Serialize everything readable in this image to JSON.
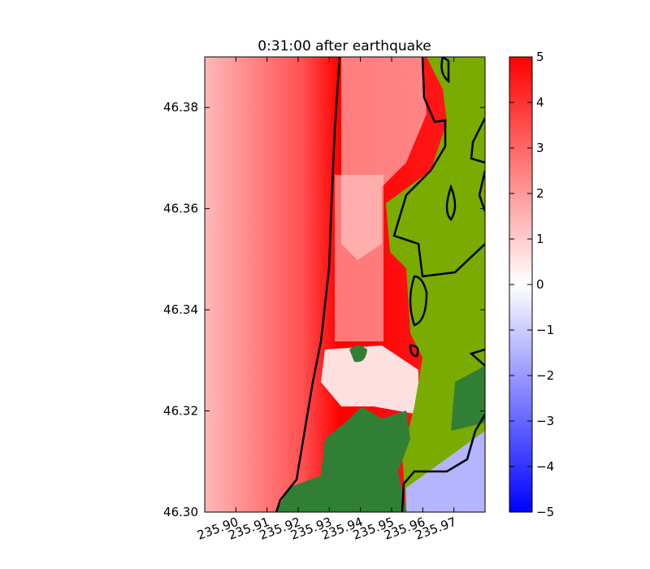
{
  "chart_data": {
    "type": "heatmap",
    "title": "0:31:00 after earthquake",
    "xlim": [
      235.89,
      235.98
    ],
    "xticks": [
      {
        "value": 235.9,
        "label": "235.90"
      },
      235.91,
      235.92,
      235.93,
      235.94,
      235.95,
      235.96,
      235.97
    ],
    "ylim": [
      46.3,
      46.39
    ],
    "yticks": [
      {
        "value": 46.3,
        "label": "46.30"
      },
      46.32,
      46.34,
      46.36,
      46.38
    ],
    "colorbar": {
      "lim": [
        -5,
        5
      ],
      "ticks": [
        {
          "value": -5,
          "label": "−5"
        },
        {
          "value": -4,
          "label": "−4"
        },
        {
          "value": -3,
          "label": "−3"
        },
        {
          "value": -2,
          "label": "−2"
        },
        {
          "value": -1,
          "label": "−1"
        },
        0,
        1,
        2,
        3,
        4,
        5
      ],
      "colors": [
        "#0000ff",
        "#ffffff",
        "#ff0000"
      ]
    }
  }
}
